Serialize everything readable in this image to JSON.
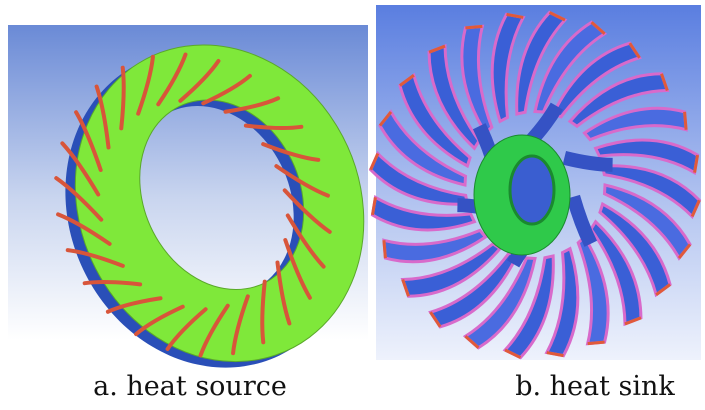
{
  "panels": [
    {
      "caption": "a. heat source"
    },
    {
      "caption": "b. heat sink"
    }
  ]
}
